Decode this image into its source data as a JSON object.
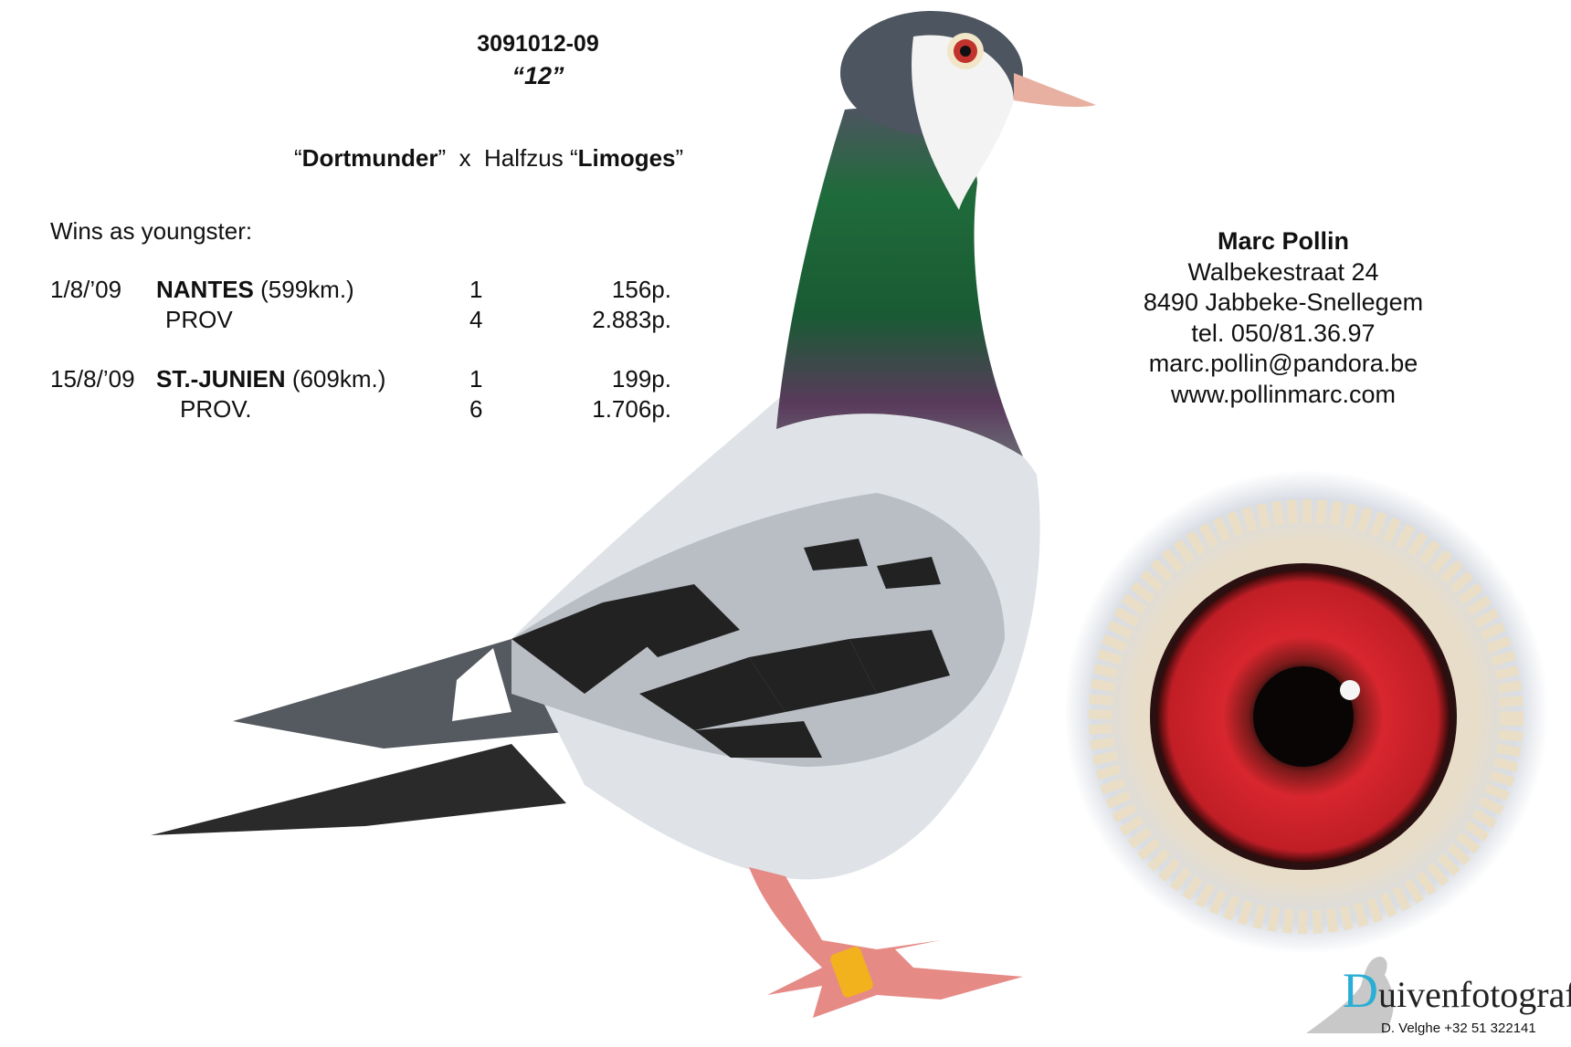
{
  "pigeon": {
    "ring_number": "3091012-09",
    "name": "“12”",
    "parents": {
      "sire": "Dortmunder",
      "cross": "x",
      "dam_prefix": "Halfzus",
      "dam": "Limoges"
    }
  },
  "results": {
    "heading": "Wins as youngster:",
    "rows": [
      {
        "date": "1/8/’09",
        "race": "NANTES",
        "distance": "(599km.)",
        "rank": "1",
        "points": "156p."
      },
      {
        "date": "",
        "race": "PROV",
        "distance": "",
        "rank": "4",
        "points": "2.883p."
      },
      {
        "date": "15/8/’09",
        "race": "ST.-JUNIEN",
        "distance": "(609km.)",
        "rank": "1",
        "points": "199p."
      },
      {
        "date": "",
        "race": "PROV.",
        "distance": "",
        "rank": "6",
        "points": "1.706p."
      }
    ]
  },
  "contact": {
    "name": "Marc Pollin",
    "street": "Walbekestraat 24",
    "city": "8490 Jabbeke-Snellegem",
    "phone": "tel. 050/81.36.97",
    "email": "marc.pollin@pandora.be",
    "website": "www.pollinmarc.com"
  },
  "logo": {
    "initial": "D",
    "word": "uivenfotografie",
    "subtitle": "D. Velghe +32 51 322141",
    "accent": "#2aaed6"
  },
  "colors": {
    "iris": "#d8262e",
    "neck_green": "#1f6b3a",
    "neck_purple": "#5a3a5c",
    "wing_dark": "#2a2a2a",
    "feet": "#e68a86"
  }
}
